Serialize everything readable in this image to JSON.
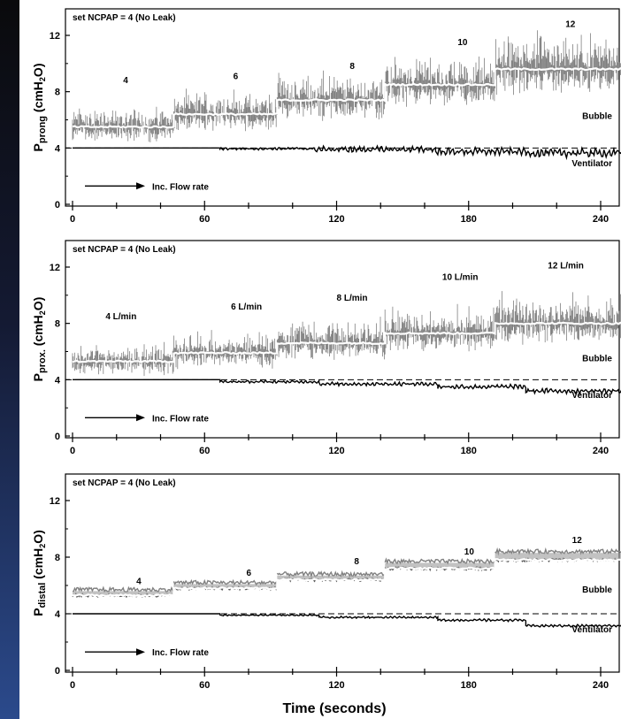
{
  "chart_data": [
    {
      "type": "line",
      "ylabel": "Pprong (cmH2O)",
      "ylabel_main": "P",
      "ylabel_sub": "prong",
      "ylabel_unit": "(cmH",
      "ylabel_unit_sub": "2",
      "ylabel_unit_tail": "O)",
      "xlim": [
        0,
        252
      ],
      "ylim": [
        0,
        13.5
      ],
      "xticks": [
        0,
        60,
        120,
        180,
        240
      ],
      "xtick_labels": [
        "0",
        "60",
        "120",
        "180",
        "240"
      ],
      "yticks": [
        0,
        4,
        8,
        12
      ],
      "ytick_labels": [
        "0",
        "4",
        "8",
        "12"
      ],
      "header": "set NCPAP = 4  (No Leak)",
      "arrow_label": "Inc. Flow rate",
      "set_line": 4,
      "series": [
        {
          "name": "Bubble",
          "color": "#808080",
          "steps": [
            {
              "x0": 0,
              "x1": 46,
              "mean": 5.5,
              "noise": 1.6
            },
            {
              "x0": 46,
              "x1": 93,
              "mean": 6.4,
              "noise": 1.8
            },
            {
              "x0": 93,
              "x1": 142,
              "mean": 7.4,
              "noise": 2.0
            },
            {
              "x0": 142,
              "x1": 192,
              "mean": 8.5,
              "noise": 2.3
            },
            {
              "x0": 192,
              "x1": 252,
              "mean": 9.6,
              "noise": 2.6
            }
          ]
        },
        {
          "name": "Ventilator",
          "color": "#000000",
          "steps": [
            {
              "x0": 0,
              "x1": 67,
              "mean": 4.0,
              "noise": 0.0
            },
            {
              "x0": 67,
              "x1": 110,
              "mean": 3.95,
              "noise": 0.1
            },
            {
              "x0": 110,
              "x1": 165,
              "mean": 3.9,
              "noise": 0.25
            },
            {
              "x0": 165,
              "x1": 206,
              "mean": 3.75,
              "noise": 0.3
            },
            {
              "x0": 206,
              "x1": 252,
              "mean": 3.65,
              "noise": 0.35
            }
          ]
        }
      ],
      "annotations": [
        {
          "text": "4",
          "x": 23,
          "y": 8.6
        },
        {
          "text": "6",
          "x": 73,
          "y": 8.9
        },
        {
          "text": "8",
          "x": 126,
          "y": 9.6
        },
        {
          "text": "10",
          "x": 175,
          "y": 11.3
        },
        {
          "text": "12",
          "x": 224,
          "y": 12.6
        }
      ]
    },
    {
      "type": "line",
      "ylabel": "Pprox. (cmH2O)",
      "ylabel_main": "P",
      "ylabel_sub": "prox.",
      "ylabel_unit": "(cmH",
      "ylabel_unit_sub": "2",
      "ylabel_unit_tail": "O)",
      "xlim": [
        0,
        252
      ],
      "ylim": [
        0,
        13.5
      ],
      "xticks": [
        0,
        60,
        120,
        180,
        240
      ],
      "xtick_labels": [
        "0",
        "60",
        "120",
        "180",
        "240"
      ],
      "yticks": [
        0,
        4,
        8,
        12
      ],
      "ytick_labels": [
        "0",
        "4",
        "8",
        "12"
      ],
      "header": "set NCPAP = 4  (No Leak)",
      "arrow_label": "Inc. Flow rate",
      "set_line": 4,
      "series": [
        {
          "name": "Bubble",
          "color": "#808080",
          "steps": [
            {
              "x0": 0,
              "x1": 46,
              "mean": 5.3,
              "noise": 1.4
            },
            {
              "x0": 46,
              "x1": 93,
              "mean": 5.9,
              "noise": 1.6
            },
            {
              "x0": 93,
              "x1": 142,
              "mean": 6.6,
              "noise": 1.8
            },
            {
              "x0": 142,
              "x1": 192,
              "mean": 7.3,
              "noise": 2.0
            },
            {
              "x0": 192,
              "x1": 252,
              "mean": 8.0,
              "noise": 2.2
            }
          ]
        },
        {
          "name": "Ventilator",
          "color": "#000000",
          "steps": [
            {
              "x0": 0,
              "x1": 67,
              "mean": 4.0,
              "noise": 0.0
            },
            {
              "x0": 67,
              "x1": 112,
              "mean": 3.85,
              "noise": 0.1
            },
            {
              "x0": 112,
              "x1": 166,
              "mean": 3.7,
              "noise": 0.15
            },
            {
              "x0": 166,
              "x1": 206,
              "mean": 3.5,
              "noise": 0.2
            },
            {
              "x0": 206,
              "x1": 252,
              "mean": 3.2,
              "noise": 0.2
            }
          ]
        }
      ],
      "annotations": [
        {
          "text": "4 L/min",
          "x": 15,
          "y": 8.3
        },
        {
          "text": "6 L/min",
          "x": 72,
          "y": 9.0
        },
        {
          "text": "8 L/min",
          "x": 120,
          "y": 9.6
        },
        {
          "text": "10 L/min",
          "x": 168,
          "y": 11.1
        },
        {
          "text": "12 L/min",
          "x": 216,
          "y": 11.9
        }
      ]
    },
    {
      "type": "line",
      "ylabel": "Pdistal (cmH2O)",
      "ylabel_main": "P",
      "ylabel_sub": "distal",
      "ylabel_unit": "(cmH",
      "ylabel_unit_sub": "2",
      "ylabel_unit_tail": "O)",
      "xlabel": "Time  (seconds)",
      "xlim": [
        0,
        252
      ],
      "ylim": [
        0,
        13.5
      ],
      "xticks": [
        0,
        60,
        120,
        180,
        240
      ],
      "xtick_labels": [
        "0",
        "60",
        "120",
        "180",
        "240"
      ],
      "yticks": [
        0,
        4,
        8,
        12
      ],
      "ytick_labels": [
        "0",
        "4",
        "8",
        "12"
      ],
      "header": "set NCPAP = 4  (No Leak)",
      "arrow_label": "Inc. Flow rate",
      "set_line": 4,
      "series": [
        {
          "name": "Bubble",
          "color": "#808080",
          "band": true,
          "steps": [
            {
              "x0": 0,
              "x1": 46,
              "mean": 5.3,
              "upper": 5.7,
              "noise": 0.3
            },
            {
              "x0": 46,
              "x1": 93,
              "mean": 5.8,
              "upper": 6.2,
              "noise": 0.3
            },
            {
              "x0": 93,
              "x1": 142,
              "mean": 6.4,
              "upper": 6.8,
              "noise": 0.3
            },
            {
              "x0": 142,
              "x1": 192,
              "mean": 7.2,
              "upper": 7.7,
              "noise": 0.3
            },
            {
              "x0": 192,
              "x1": 252,
              "mean": 7.8,
              "upper": 8.4,
              "noise": 0.3
            }
          ]
        },
        {
          "name": "Ventilator",
          "color": "#000000",
          "steps": [
            {
              "x0": 0,
              "x1": 67,
              "mean": 4.0,
              "noise": 0.0
            },
            {
              "x0": 67,
              "x1": 112,
              "mean": 3.9,
              "noise": 0.05
            },
            {
              "x0": 112,
              "x1": 166,
              "mean": 3.75,
              "noise": 0.08
            },
            {
              "x0": 166,
              "x1": 206,
              "mean": 3.55,
              "noise": 0.1
            },
            {
              "x0": 206,
              "x1": 252,
              "mean": 3.15,
              "noise": 0.1
            }
          ]
        }
      ],
      "annotations": [
        {
          "text": "4",
          "x": 29,
          "y": 6.1
        },
        {
          "text": "6",
          "x": 79,
          "y": 6.7
        },
        {
          "text": "8",
          "x": 128,
          "y": 7.5
        },
        {
          "text": "10",
          "x": 178,
          "y": 8.2
        },
        {
          "text": "12",
          "x": 227,
          "y": 9.0
        }
      ]
    }
  ]
}
